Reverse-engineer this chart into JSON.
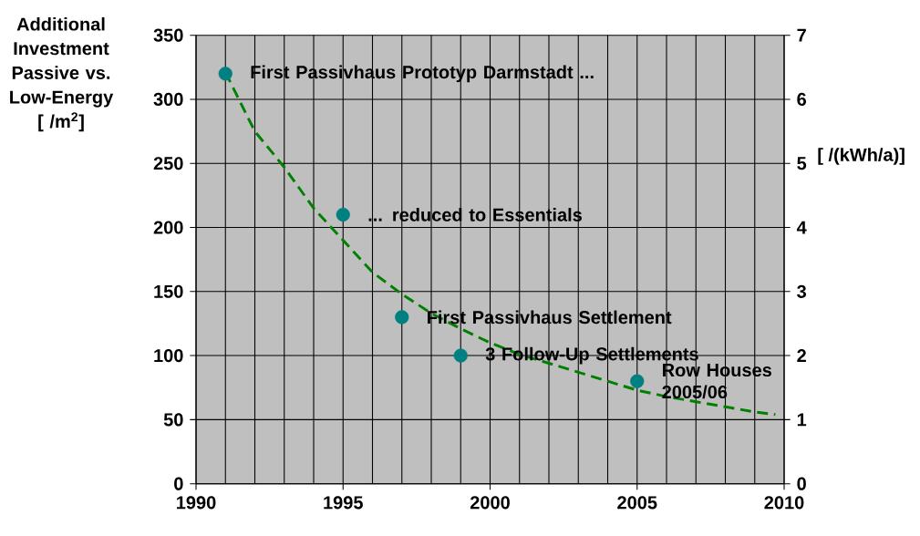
{
  "chart_data": {
    "type": "scatter",
    "ylabel": "Additional Investment Passive vs. Low-Energy [  /m$^{2}$]",
    "y2label": "[  /(kWh/a)]",
    "xlim": [
      1990,
      2010
    ],
    "xticks": [
      1990,
      1995,
      2000,
      2005,
      2010
    ],
    "ylim": [
      0,
      350
    ],
    "yticks": [
      0,
      50,
      100,
      150,
      200,
      250,
      300,
      350
    ],
    "y2lim": [
      0,
      7
    ],
    "y2ticks": [
      0,
      1,
      2,
      3,
      4,
      5,
      6,
      7
    ],
    "grid": true,
    "series": [
      {
        "type": "scatter",
        "color": "#008080",
        "marker": "circle",
        "x": [
          1991,
          1995,
          1997,
          1999,
          2005
        ],
        "values": [
          320,
          210,
          130,
          100,
          80
        ]
      },
      {
        "type": "line",
        "color": "#008000",
        "line_style": "dashed",
        "marker": "none",
        "x": [
          1991,
          1992,
          1993,
          1994,
          1995,
          1996,
          1997,
          1998,
          1999,
          2000,
          2001,
          2002,
          2003,
          2004,
          2005,
          2006,
          2007,
          2008,
          2009,
          2009.7
        ],
        "values": [
          321,
          275,
          247,
          215,
          190,
          165,
          148,
          133,
          121,
          110,
          101,
          94,
          87,
          80,
          73,
          68,
          64,
          60,
          56,
          54
        ]
      }
    ],
    "annotations": [
      {
        "text": "First Passivhaus Prototyp Darmstadt ...",
        "x": 1991,
        "y": 320
      },
      {
        "text": "... reduced to Essentials",
        "x": 1995,
        "y": 210
      },
      {
        "text": "First Passivhaus Settlement",
        "x": 1997,
        "y": 130
      },
      {
        "text": "3 Follow-Up Settlements",
        "x": 1999,
        "y": 100
      },
      {
        "text": "Row Houses 2005/06",
        "x": 2005,
        "y": 80
      }
    ]
  }
}
